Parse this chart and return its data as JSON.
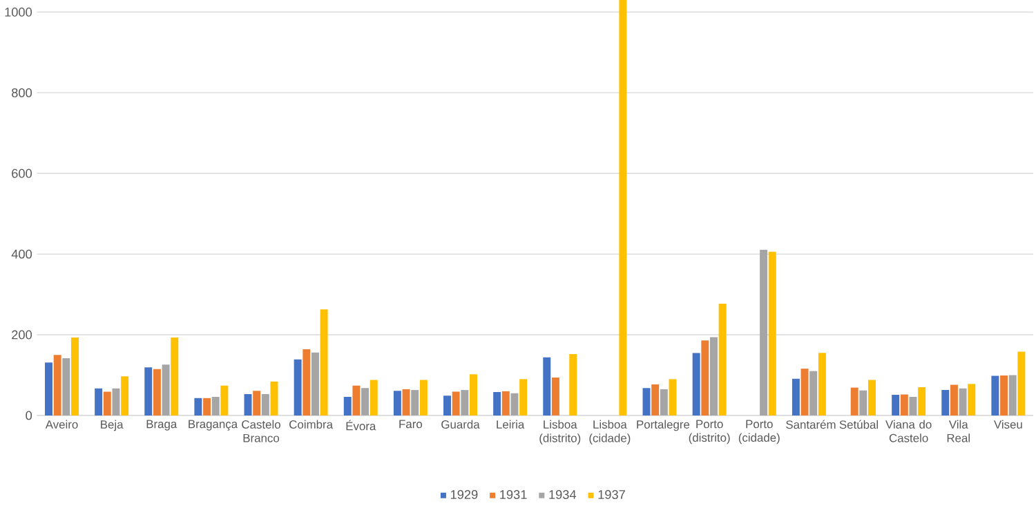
{
  "chart_data": {
    "type": "bar",
    "categories": [
      "Aveiro",
      "Beja",
      "Braga",
      "Bragança",
      "Castelo Branco",
      "Coimbra",
      "Évora",
      "Faro",
      "Guarda",
      "Leiria",
      "Lisboa (distrito)",
      "Lisboa (cidade)",
      "Portalegre",
      "Porto (distrito)",
      "Porto (cidade)",
      "Santarém",
      "Setúbal",
      "Viana do Castelo",
      "Vila Real",
      "Viseu"
    ],
    "series": [
      {
        "name": "1929",
        "color": "#4472c4",
        "values": [
          131,
          67,
          119,
          43,
          53,
          139,
          46,
          61,
          49,
          58,
          144,
          null,
          68,
          155,
          null,
          91,
          null,
          51,
          63,
          98
        ]
      },
      {
        "name": "1931",
        "color": "#ed7d31",
        "values": [
          150,
          59,
          115,
          43,
          61,
          164,
          74,
          65,
          59,
          60,
          94,
          null,
          77,
          186,
          null,
          116,
          69,
          52,
          76,
          99
        ]
      },
      {
        "name": "1934",
        "color": "#a5a5a5",
        "values": [
          142,
          67,
          126,
          46,
          53,
          156,
          68,
          63,
          63,
          55,
          null,
          null,
          65,
          194,
          411,
          110,
          62,
          46,
          67,
          100
        ]
      },
      {
        "name": "1937",
        "color": "#ffc000",
        "values": [
          193,
          97,
          193,
          74,
          84,
          263,
          88,
          88,
          102,
          90,
          152,
          1030,
          90,
          277,
          406,
          155,
          88,
          70,
          78,
          158
        ]
      }
    ],
    "ylim": [
      0,
      1030
    ],
    "yticks": [
      0,
      200,
      400,
      600,
      800,
      1000
    ],
    "grid": "y",
    "legend": "bottom"
  }
}
